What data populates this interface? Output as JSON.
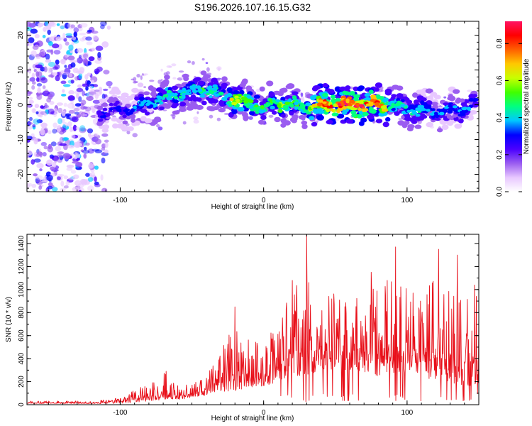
{
  "title": "S196.2026.107.16.15.G32",
  "chart_data": [
    {
      "type": "heatmap",
      "title": "S196.2026.107.16.15.G32",
      "xlabel": "Height of straight line (km)",
      "ylabel": "Frequency (Hz)",
      "xlim": [
        -165,
        150
      ],
      "ylim": [
        -25,
        24
      ],
      "x_ticks": [
        -100,
        0,
        100
      ],
      "y_ticks": [
        -20,
        -10,
        0,
        10,
        20
      ],
      "y_tick_labels": [
        "-20",
        "-10",
        "0",
        "10",
        "20"
      ],
      "colorbar": {
        "label": "Normalized spectral amplitude",
        "range": [
          0.0,
          0.92
        ],
        "ticks": [
          0.0,
          0.2,
          0.4,
          0.6,
          0.8
        ],
        "tick_labels": [
          "0.0",
          "0.2",
          "0.4",
          "0.6",
          "0.8"
        ],
        "colors": [
          "#ffffff",
          "#e8c8ff",
          "#9a5cf0",
          "#4a00ff",
          "#0000ff",
          "#00c8ff",
          "#00ff80",
          "#40ff00",
          "#c8ff00",
          "#ffc800",
          "#ff6000",
          "#ff0000",
          "#ff1464"
        ]
      },
      "trace": {
        "x": [
          -115,
          -100,
          -90,
          -80,
          -70,
          -60,
          -50,
          -40,
          -30,
          -20,
          -10,
          0,
          10,
          20,
          30,
          40,
          50,
          60,
          70,
          80,
          90,
          100,
          110,
          120,
          130,
          140,
          148
        ],
        "frequency": [
          -2.5,
          -1.5,
          -1,
          0.5,
          2,
          3,
          4,
          4.5,
          3,
          1.5,
          0.5,
          -0.5,
          0.5,
          0,
          -0.5,
          0,
          0,
          0,
          0.2,
          0,
          -0.5,
          -1,
          -1.5,
          -2,
          -1.5,
          -1,
          0
        ],
        "peak_amplitude": [
          0.25,
          0.3,
          0.35,
          0.4,
          0.45,
          0.45,
          0.45,
          0.5,
          0.45,
          0.7,
          0.55,
          0.5,
          0.6,
          0.5,
          0.55,
          0.85,
          0.9,
          0.9,
          0.85,
          0.85,
          0.5,
          0.45,
          0.4,
          0.35,
          0.35,
          0.35,
          0.4
        ]
      },
      "noise_region_x": [
        -165,
        -105
      ]
    },
    {
      "type": "line",
      "xlabel": "Height of straight line (km)",
      "ylabel": "SNR (10 * v/v)",
      "xlim": [
        -165,
        150
      ],
      "ylim": [
        0,
        1480
      ],
      "x_ticks": [
        -100,
        0,
        100
      ],
      "y_ticks": [
        0,
        200,
        400,
        600,
        800,
        1000,
        1200,
        1400
      ],
      "y_tick_labels": [
        "0",
        "200",
        "400",
        "600",
        "800",
        "1000",
        "1200",
        "1400"
      ],
      "color": "#e8101a",
      "envelope": {
        "x": [
          -165,
          -140,
          -120,
          -100,
          -90,
          -80,
          -70,
          -60,
          -50,
          -40,
          -30,
          -20,
          -10,
          0,
          10,
          20,
          30,
          40,
          50,
          60,
          70,
          80,
          90,
          100,
          110,
          120,
          130,
          140,
          150
        ],
        "low": [
          10,
          10,
          8,
          10,
          20,
          30,
          40,
          40,
          60,
          80,
          100,
          120,
          150,
          150,
          200,
          250,
          250,
          300,
          300,
          280,
          280,
          250,
          250,
          280,
          250,
          200,
          200,
          150,
          150
        ],
        "high": [
          30,
          35,
          30,
          60,
          130,
          180,
          280,
          180,
          180,
          250,
          500,
          700,
          600,
          550,
          700,
          1050,
          1100,
          900,
          1000,
          900,
          1050,
          1000,
          1150,
          1050,
          950,
          1150,
          1000,
          900,
          1000
        ]
      },
      "peaks": [
        {
          "x": 30,
          "y": 1480
        },
        {
          "x": 92,
          "y": 1370
        },
        {
          "x": 122,
          "y": 1350
        },
        {
          "x": 135,
          "y": 1300
        },
        {
          "x": 20,
          "y": 1080
        },
        {
          "x": 75,
          "y": 1150
        },
        {
          "x": 147,
          "y": 1040
        },
        {
          "x": -20,
          "y": 850
        },
        {
          "x": -68,
          "y": 290
        }
      ]
    }
  ]
}
